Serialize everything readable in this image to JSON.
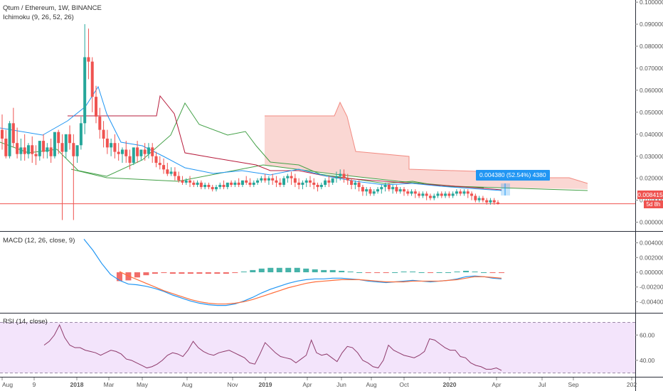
{
  "header": {
    "symbol_line": "Qtum / Ethereum, 1W, BINANCE",
    "ichimoku_label": "Ichimoku (9, 26, 52, 26)",
    "macd_label": "MACD (12, 26, close, 9)",
    "rsi_label": "RSI (14, close)"
  },
  "price_badge": {
    "value": "0.008415",
    "countdown": "5d 8h"
  },
  "measure_tooltip": {
    "text": "0.004380 (52.54%) 4380"
  },
  "colors": {
    "up": "#26a69a",
    "down": "#ef5350",
    "tenkan": "#2196f3",
    "kijun": "#b71c3c",
    "lagging": "#43a047",
    "cloud_bear": "#f8c9c4",
    "cloud_bull": "#c8e6c9",
    "macd_line": "#2196f3",
    "signal_line": "#ff6d3a",
    "rsi_line": "#8e3a6b",
    "rsi_band": "#f3e4fb",
    "price_line": "#ef5350",
    "measure": "#2196f3"
  },
  "chart_data": {
    "type": "candlestick",
    "x_ticks": [
      "Aug",
      "9",
      "2018",
      "Mar",
      "May",
      "Aug",
      "Nov",
      "2019",
      "Apr",
      "Jun",
      "Aug",
      "Oct",
      "2020",
      "Apr",
      "Jul",
      "Sep",
      "202"
    ],
    "price_axis": {
      "ticks": [
        "0.100000",
        "0.090000",
        "0.080000",
        "0.070000",
        "0.060000",
        "0.050000",
        "0.040000",
        "0.030000",
        "0.020000",
        "0.010000",
        "0.000000"
      ],
      "range": [
        -0.004,
        0.101
      ]
    },
    "macd_axis": {
      "ticks": [
        "0.004000",
        "0.002000",
        "0.000000",
        "-0.002000",
        "-0.004000"
      ],
      "range": [
        -0.0055,
        0.0055
      ]
    },
    "rsi_axis": {
      "ticks": [
        "60.00",
        "40.00"
      ],
      "range": [
        27,
        77
      ],
      "band": [
        30,
        70
      ]
    },
    "last_price": 0.008415,
    "candles_ohlc": [
      [
        0.042,
        0.049,
        0.038,
        0.033
      ],
      [
        0.038,
        0.042,
        0.03,
        0.029
      ],
      [
        0.03,
        0.046,
        0.045,
        0.029
      ],
      [
        0.045,
        0.052,
        0.036,
        0.034
      ],
      [
        0.036,
        0.043,
        0.031,
        0.029
      ],
      [
        0.031,
        0.038,
        0.034,
        0.028
      ],
      [
        0.034,
        0.04,
        0.031,
        0.028
      ],
      [
        0.031,
        0.036,
        0.035,
        0.029
      ],
      [
        0.035,
        0.039,
        0.031,
        0.027
      ],
      [
        0.031,
        0.035,
        0.03,
        0.026
      ],
      [
        0.03,
        0.034,
        0.037,
        0.028
      ],
      [
        0.037,
        0.04,
        0.032,
        0.029
      ],
      [
        0.032,
        0.036,
        0.034,
        0.029
      ],
      [
        0.034,
        0.038,
        0.03,
        0.027
      ],
      [
        0.03,
        0.034,
        0.041,
        0.029
      ],
      [
        0.041,
        0.042,
        0.036,
        0.031
      ],
      [
        0.036,
        0.04,
        0.032,
        0.001
      ],
      [
        0.032,
        0.036,
        0.04,
        0.029
      ],
      [
        0.04,
        0.044,
        0.036,
        0.033
      ],
      [
        0.036,
        0.04,
        0.03,
        0.001
      ],
      [
        0.03,
        0.032,
        0.035,
        0.027
      ],
      [
        0.035,
        0.048,
        0.045,
        0.033
      ],
      [
        0.045,
        0.09,
        0.075,
        0.04
      ],
      [
        0.075,
        0.088,
        0.073,
        0.065
      ],
      [
        0.073,
        0.075,
        0.057,
        0.05
      ],
      [
        0.057,
        0.062,
        0.048,
        0.045
      ],
      [
        0.048,
        0.052,
        0.042,
        0.038
      ],
      [
        0.042,
        0.046,
        0.038,
        0.034
      ],
      [
        0.038,
        0.042,
        0.034,
        0.031
      ],
      [
        0.034,
        0.038,
        0.036,
        0.03
      ],
      [
        0.036,
        0.04,
        0.032,
        0.029
      ],
      [
        0.032,
        0.036,
        0.031,
        0.028
      ],
      [
        0.031,
        0.034,
        0.033,
        0.027
      ],
      [
        0.033,
        0.037,
        0.03,
        0.027
      ],
      [
        0.03,
        0.033,
        0.027,
        0.024
      ],
      [
        0.027,
        0.031,
        0.034,
        0.026
      ],
      [
        0.034,
        0.037,
        0.03,
        0.027
      ],
      [
        0.03,
        0.033,
        0.033,
        0.028
      ],
      [
        0.033,
        0.036,
        0.031,
        0.028
      ],
      [
        0.031,
        0.036,
        0.034,
        0.029
      ],
      [
        0.034,
        0.036,
        0.03,
        0.027
      ],
      [
        0.03,
        0.032,
        0.027,
        0.025
      ],
      [
        0.027,
        0.03,
        0.026,
        0.024
      ],
      [
        0.026,
        0.029,
        0.024,
        0.022
      ],
      [
        0.024,
        0.027,
        0.022,
        0.021
      ],
      [
        0.022,
        0.025,
        0.023,
        0.021
      ],
      [
        0.023,
        0.025,
        0.021,
        0.019
      ],
      [
        0.021,
        0.023,
        0.019,
        0.018
      ],
      [
        0.019,
        0.021,
        0.018,
        0.017
      ],
      [
        0.018,
        0.02,
        0.019,
        0.017
      ],
      [
        0.019,
        0.021,
        0.018,
        0.016
      ],
      [
        0.018,
        0.019,
        0.017,
        0.016
      ],
      [
        0.017,
        0.019,
        0.018,
        0.016
      ],
      [
        0.018,
        0.019,
        0.016,
        0.015
      ],
      [
        0.016,
        0.018,
        0.017,
        0.015
      ],
      [
        0.017,
        0.018,
        0.016,
        0.015
      ],
      [
        0.016,
        0.017,
        0.015,
        0.014
      ],
      [
        0.015,
        0.017,
        0.016,
        0.014
      ],
      [
        0.016,
        0.018,
        0.017,
        0.015
      ],
      [
        0.017,
        0.019,
        0.016,
        0.015
      ],
      [
        0.016,
        0.018,
        0.018,
        0.015
      ],
      [
        0.018,
        0.019,
        0.017,
        0.016
      ],
      [
        0.017,
        0.019,
        0.018,
        0.016
      ],
      [
        0.018,
        0.02,
        0.017,
        0.016
      ],
      [
        0.017,
        0.019,
        0.019,
        0.016
      ],
      [
        0.019,
        0.021,
        0.018,
        0.017
      ],
      [
        0.018,
        0.02,
        0.017,
        0.016
      ],
      [
        0.017,
        0.019,
        0.018,
        0.016
      ],
      [
        0.018,
        0.02,
        0.019,
        0.017
      ],
      [
        0.019,
        0.021,
        0.02,
        0.018
      ],
      [
        0.02,
        0.022,
        0.019,
        0.018
      ],
      [
        0.019,
        0.021,
        0.02,
        0.017
      ],
      [
        0.02,
        0.022,
        0.019,
        0.017
      ],
      [
        0.019,
        0.021,
        0.018,
        0.016
      ],
      [
        0.018,
        0.02,
        0.017,
        0.016
      ],
      [
        0.017,
        0.021,
        0.02,
        0.016
      ],
      [
        0.02,
        0.022,
        0.021,
        0.018
      ],
      [
        0.021,
        0.023,
        0.02,
        0.017
      ],
      [
        0.02,
        0.022,
        0.018,
        0.016
      ],
      [
        0.018,
        0.02,
        0.017,
        0.015
      ],
      [
        0.017,
        0.019,
        0.018,
        0.015
      ],
      [
        0.018,
        0.02,
        0.019,
        0.016
      ],
      [
        0.019,
        0.021,
        0.018,
        0.016
      ],
      [
        0.018,
        0.02,
        0.017,
        0.015
      ],
      [
        0.017,
        0.018,
        0.016,
        0.014
      ],
      [
        0.016,
        0.018,
        0.017,
        0.015
      ],
      [
        0.017,
        0.02,
        0.019,
        0.016
      ],
      [
        0.019,
        0.021,
        0.018,
        0.016
      ],
      [
        0.018,
        0.02,
        0.02,
        0.017
      ],
      [
        0.02,
        0.023,
        0.021,
        0.018
      ],
      [
        0.021,
        0.024,
        0.022,
        0.019
      ],
      [
        0.022,
        0.024,
        0.02,
        0.018
      ],
      [
        0.02,
        0.022,
        0.019,
        0.017
      ],
      [
        0.019,
        0.02,
        0.017,
        0.015
      ],
      [
        0.017,
        0.019,
        0.018,
        0.015
      ],
      [
        0.018,
        0.019,
        0.016,
        0.014
      ],
      [
        0.016,
        0.017,
        0.014,
        0.012
      ],
      [
        0.014,
        0.016,
        0.015,
        0.012
      ],
      [
        0.015,
        0.016,
        0.013,
        0.012
      ],
      [
        0.013,
        0.015,
        0.014,
        0.012
      ],
      [
        0.014,
        0.016,
        0.015,
        0.013
      ],
      [
        0.015,
        0.017,
        0.016,
        0.013
      ],
      [
        0.016,
        0.018,
        0.017,
        0.014
      ],
      [
        0.017,
        0.018,
        0.015,
        0.014
      ],
      [
        0.015,
        0.017,
        0.016,
        0.013
      ],
      [
        0.016,
        0.017,
        0.014,
        0.013
      ],
      [
        0.014,
        0.016,
        0.015,
        0.013
      ],
      [
        0.015,
        0.016,
        0.014,
        0.012
      ],
      [
        0.014,
        0.015,
        0.013,
        0.012
      ],
      [
        0.013,
        0.015,
        0.014,
        0.012
      ],
      [
        0.014,
        0.015,
        0.013,
        0.011
      ],
      [
        0.013,
        0.014,
        0.012,
        0.011
      ],
      [
        0.012,
        0.014,
        0.013,
        0.011
      ],
      [
        0.013,
        0.014,
        0.012,
        0.01
      ],
      [
        0.012,
        0.013,
        0.011,
        0.01
      ],
      [
        0.011,
        0.013,
        0.012,
        0.01
      ],
      [
        0.012,
        0.014,
        0.013,
        0.011
      ],
      [
        0.013,
        0.014,
        0.012,
        0.011
      ],
      [
        0.012,
        0.014,
        0.013,
        0.011
      ],
      [
        0.013,
        0.014,
        0.012,
        0.011
      ],
      [
        0.012,
        0.014,
        0.013,
        0.011
      ],
      [
        0.013,
        0.015,
        0.014,
        0.012
      ],
      [
        0.014,
        0.015,
        0.013,
        0.012
      ],
      [
        0.013,
        0.015,
        0.014,
        0.012
      ],
      [
        0.014,
        0.015,
        0.013,
        0.011
      ],
      [
        0.013,
        0.014,
        0.012,
        0.01
      ],
      [
        0.012,
        0.013,
        0.01,
        0.009
      ],
      [
        0.01,
        0.012,
        0.011,
        0.009
      ],
      [
        0.011,
        0.012,
        0.01,
        0.009
      ],
      [
        0.01,
        0.011,
        0.009,
        0.008
      ],
      [
        0.009,
        0.011,
        0.01,
        0.008
      ],
      [
        0.01,
        0.011,
        0.009,
        0.008
      ],
      [
        0.009,
        0.01,
        0.0084,
        0.008
      ]
    ],
    "macd_line": [
      0.0045,
      0.003,
      0.0012,
      -0.0003,
      -0.0011,
      -0.0016,
      -0.0017,
      -0.0019,
      -0.0022,
      -0.0026,
      -0.0031,
      -0.0035,
      -0.0039,
      -0.0042,
      -0.0044,
      -0.0045,
      -0.0045,
      -0.0043,
      -0.0039,
      -0.0034,
      -0.0028,
      -0.0023,
      -0.0019,
      -0.0015,
      -0.0012,
      -0.001,
      -0.0009,
      -0.0009,
      -0.0008,
      -0.0008,
      -0.0009,
      -0.001,
      -0.0012,
      -0.0013,
      -0.0014,
      -0.0013,
      -0.0012,
      -0.0011,
      -0.0012,
      -0.0013,
      -0.0012,
      -0.0011,
      -0.0009,
      -0.0006,
      -0.0005,
      -0.0006,
      -0.0008,
      -0.0009
    ],
    "signal_line": [
      null,
      null,
      null,
      null,
      0.0001,
      -0.0005,
      -0.001,
      -0.0015,
      -0.002,
      -0.0025,
      -0.0029,
      -0.0033,
      -0.0037,
      -0.004,
      -0.0042,
      -0.0043,
      -0.0043,
      -0.0042,
      -0.004,
      -0.0037,
      -0.0033,
      -0.0029,
      -0.0025,
      -0.0021,
      -0.0018,
      -0.0015,
      -0.0013,
      -0.0012,
      -0.0011,
      -0.001,
      -0.001,
      -0.001,
      -0.0011,
      -0.0012,
      -0.0013,
      -0.0013,
      -0.0013,
      -0.0012,
      -0.0012,
      -0.0012,
      -0.0012,
      -0.0011,
      -0.001,
      -0.0008,
      -0.0006,
      -0.0006,
      -0.0007,
      -0.0008
    ],
    "histogram": [
      null,
      null,
      null,
      null,
      -0.0012,
      -0.0011,
      -0.0007,
      -0.0004,
      -0.0002,
      -0.0001,
      -0.0002,
      -0.0002,
      -0.0002,
      -0.0002,
      -0.0002,
      -0.0002,
      -0.0002,
      -0.0001,
      0.0001,
      0.0003,
      0.0005,
      0.0006,
      0.0006,
      0.0006,
      0.0006,
      0.0005,
      0.0004,
      0.0003,
      0.0003,
      0.0002,
      0.0001,
      0.0,
      -0.0001,
      -0.0001,
      -0.0001,
      0.0,
      0.0001,
      0.0001,
      0.0,
      -0.0001,
      0.0,
      0.0,
      0.0001,
      0.0002,
      0.0001,
      0.0,
      -0.0001,
      -0.0001
    ],
    "rsi": [
      52,
      55,
      60,
      68,
      58,
      52,
      50,
      50,
      48,
      47,
      46,
      44,
      46,
      48,
      47,
      45,
      41,
      40,
      38,
      36,
      34,
      35,
      37,
      40,
      44,
      46,
      45,
      43,
      48,
      55,
      50,
      47,
      45,
      44,
      46,
      47,
      48,
      46,
      44,
      42,
      38,
      37,
      45,
      54,
      50,
      46,
      43,
      42,
      41,
      38,
      41,
      44,
      56,
      46,
      44,
      45,
      42,
      39,
      46,
      51,
      50,
      46,
      40,
      38,
      35,
      34,
      40,
      52,
      48,
      46,
      44,
      43,
      42,
      44,
      47,
      57,
      56,
      53,
      50,
      48,
      48,
      43,
      42,
      38,
      36,
      35,
      33,
      33,
      34,
      32
    ]
  }
}
